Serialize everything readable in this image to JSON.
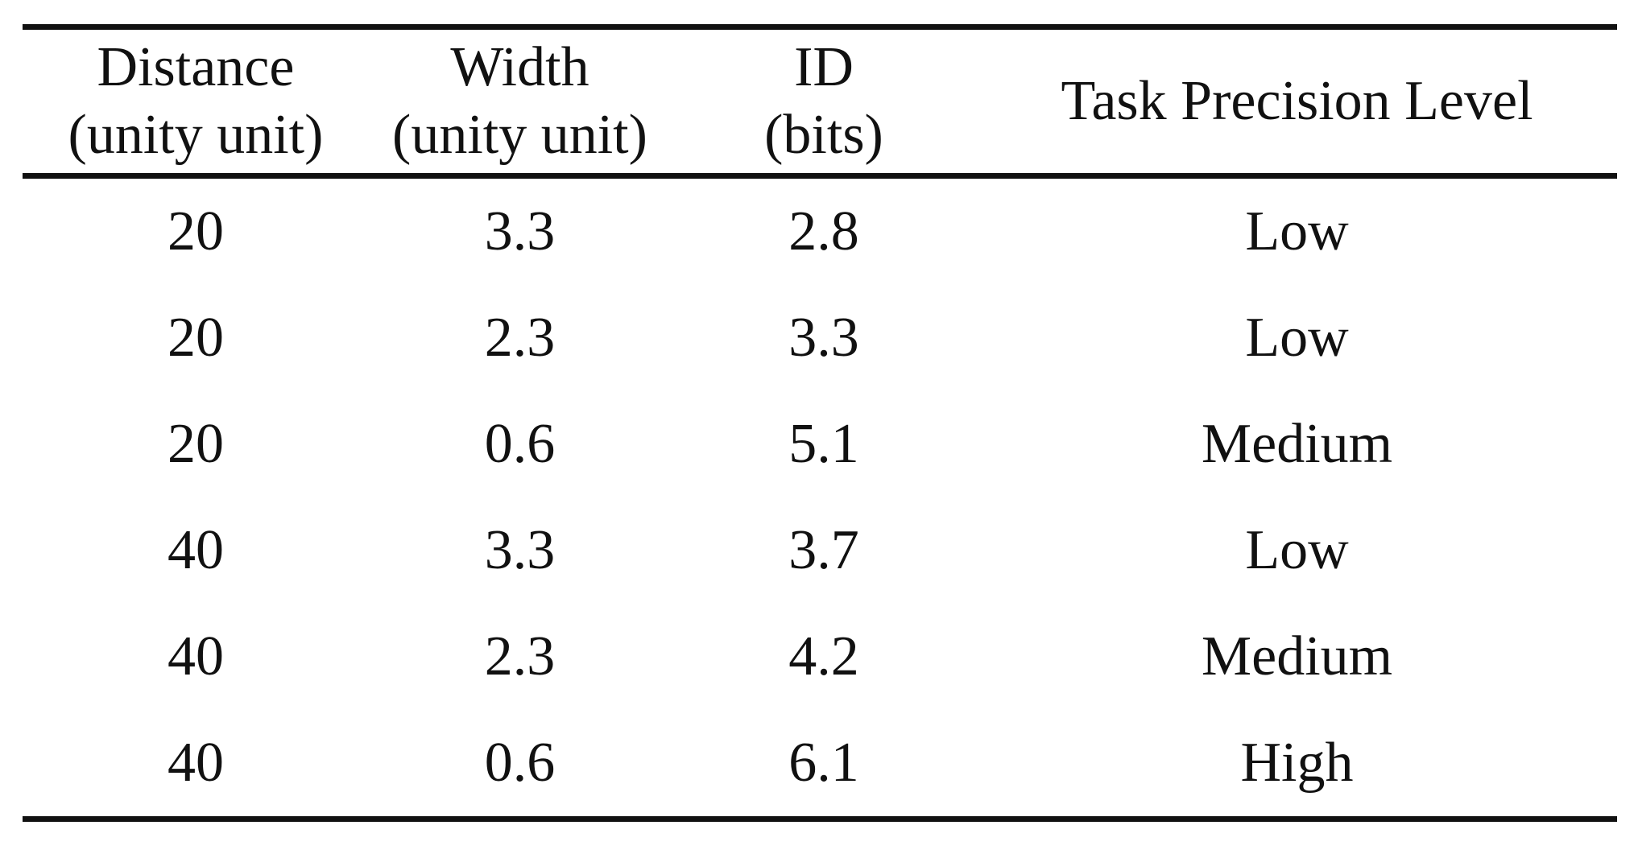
{
  "table": {
    "headers": [
      {
        "line1": "Distance",
        "line2": "(unity unit)"
      },
      {
        "line1": "Width",
        "line2": "(unity unit)"
      },
      {
        "line1": "ID",
        "line2": "(bits)"
      },
      {
        "line1": "Task Precision Level",
        "line2": ""
      }
    ],
    "rows": [
      [
        "20",
        "3.3",
        "2.8",
        "Low"
      ],
      [
        "20",
        "2.3",
        "3.3",
        "Low"
      ],
      [
        "20",
        "0.6",
        "5.1",
        "Medium"
      ],
      [
        "40",
        "3.3",
        "3.7",
        "Low"
      ],
      [
        "40",
        "2.3",
        "4.2",
        "Medium"
      ],
      [
        "40",
        "0.6",
        "6.1",
        "High"
      ]
    ]
  }
}
